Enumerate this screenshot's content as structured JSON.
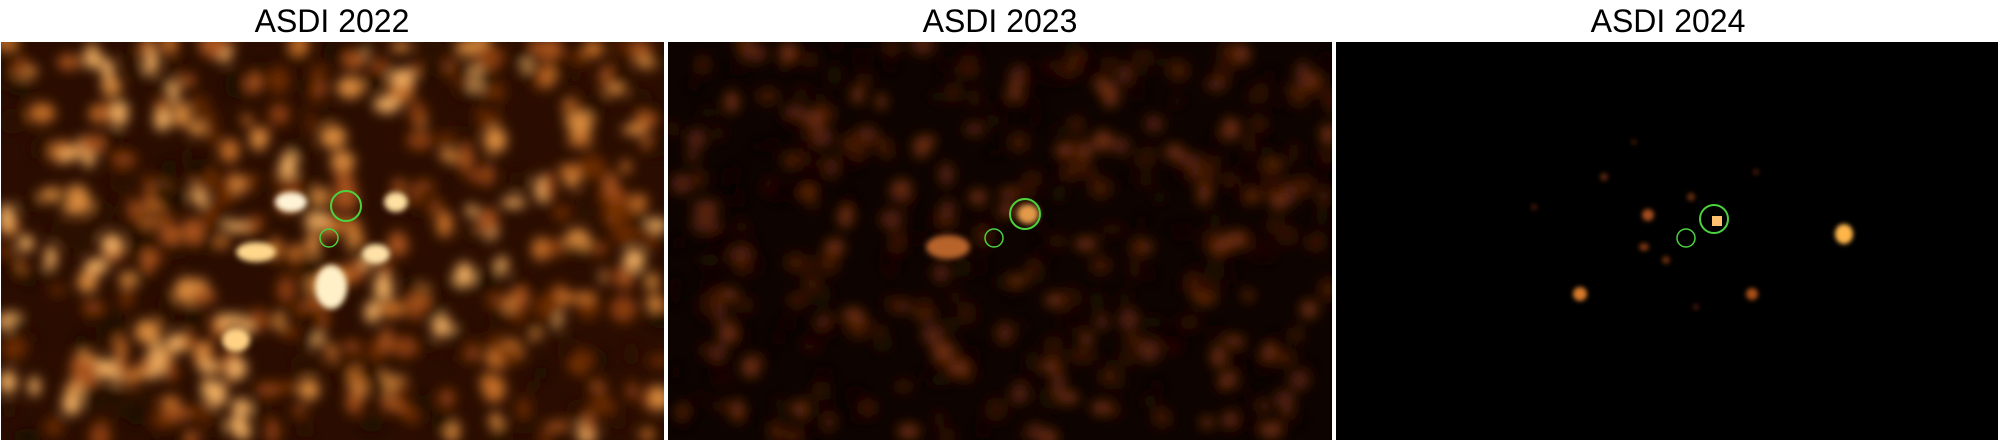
{
  "panels": [
    {
      "title": "ASDI 2022"
    },
    {
      "title": "ASDI 2023"
    },
    {
      "title": "ASDI 2024"
    }
  ],
  "colors": {
    "background": "#000000",
    "heat_low": "#3a1200",
    "heat_mid": "#c0580f",
    "heat_high": "#ffe6b0",
    "marker": "#4bd23c"
  }
}
